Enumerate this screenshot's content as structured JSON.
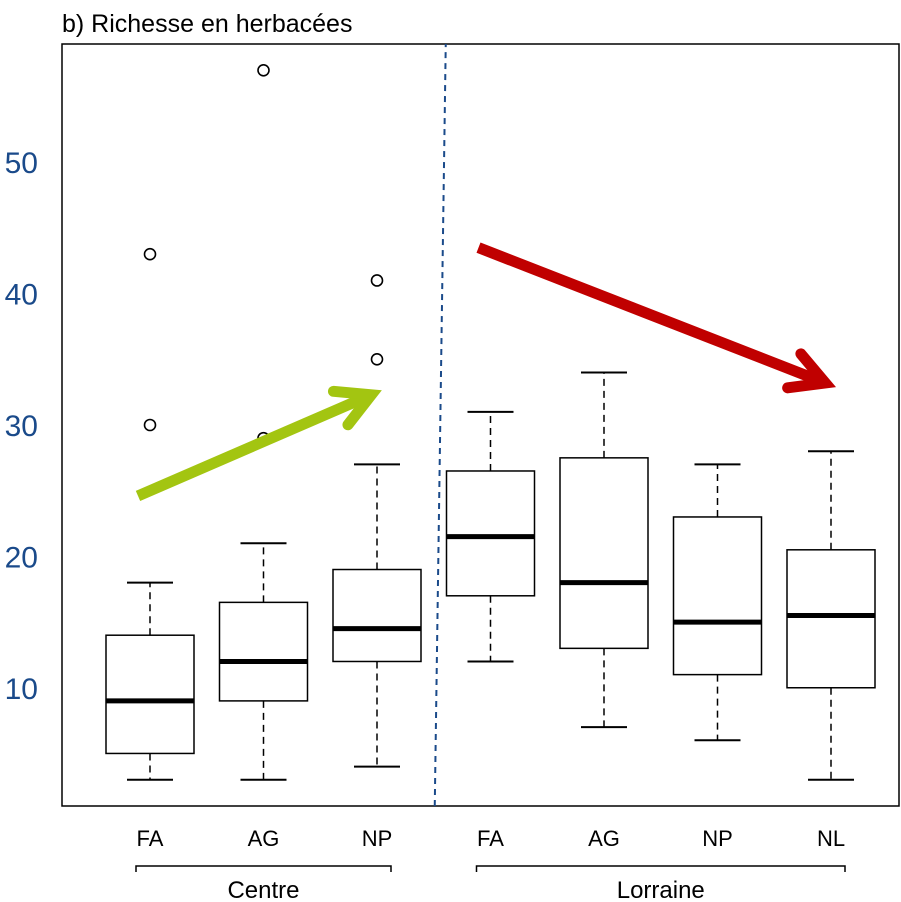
{
  "chart_data": {
    "type": "boxplot",
    "title": "b) Richesse en herbacées",
    "xlabel": "",
    "ylabel": "",
    "ylim": [
      1,
      59
    ],
    "yticks": [
      10,
      20,
      30,
      40,
      50
    ],
    "grid": false,
    "categories": [
      "FA",
      "AG",
      "NP",
      "FA",
      "AG",
      "NP",
      "NL"
    ],
    "groups": [
      {
        "name": "Centre",
        "members": [
          0,
          1,
          2
        ]
      },
      {
        "name": "Lorraine",
        "members": [
          3,
          4,
          5,
          6
        ]
      }
    ],
    "boxes": [
      {
        "label": "FA",
        "group": "Centre",
        "min": 3,
        "q1": 5,
        "median": 9,
        "q3": 14,
        "max": 18,
        "outliers": [
          30,
          43
        ]
      },
      {
        "label": "AG",
        "group": "Centre",
        "min": 3,
        "q1": 9,
        "median": 12,
        "q3": 16.5,
        "max": 21,
        "outliers": [
          29,
          57
        ]
      },
      {
        "label": "NP",
        "group": "Centre",
        "min": 4,
        "q1": 12,
        "median": 14.5,
        "q3": 19,
        "max": 27,
        "outliers": [
          35,
          41
        ]
      },
      {
        "label": "FA",
        "group": "Lorraine",
        "min": 12,
        "q1": 17,
        "median": 21.5,
        "q3": 26.5,
        "max": 31,
        "outliers": []
      },
      {
        "label": "AG",
        "group": "Lorraine",
        "min": 7,
        "q1": 13,
        "median": 18,
        "q3": 27.5,
        "max": 34,
        "outliers": []
      },
      {
        "label": "NP",
        "group": "Lorraine",
        "min": 6,
        "q1": 11,
        "median": 15,
        "q3": 23,
        "max": 27,
        "outliers": []
      },
      {
        "label": "NL",
        "group": "Lorraine",
        "min": 3,
        "q1": 10,
        "median": 15.5,
        "q3": 20.5,
        "max": 28,
        "outliers": []
      }
    ],
    "separator_after_index": 2,
    "arrows": [
      {
        "color": "#a3c511",
        "from": {
          "x": 0,
          "y": 24.6
        },
        "to": {
          "x": 1.95,
          "y": 32.3
        }
      },
      {
        "color": "#c00000",
        "from": {
          "x": 3,
          "y": 43.5
        },
        "to": {
          "x": 5.95,
          "y": 33.2
        }
      }
    ],
    "colors": {
      "axis_text": "#1a4a8a",
      "separator": "#1a4a8a",
      "box": "#000000"
    }
  }
}
